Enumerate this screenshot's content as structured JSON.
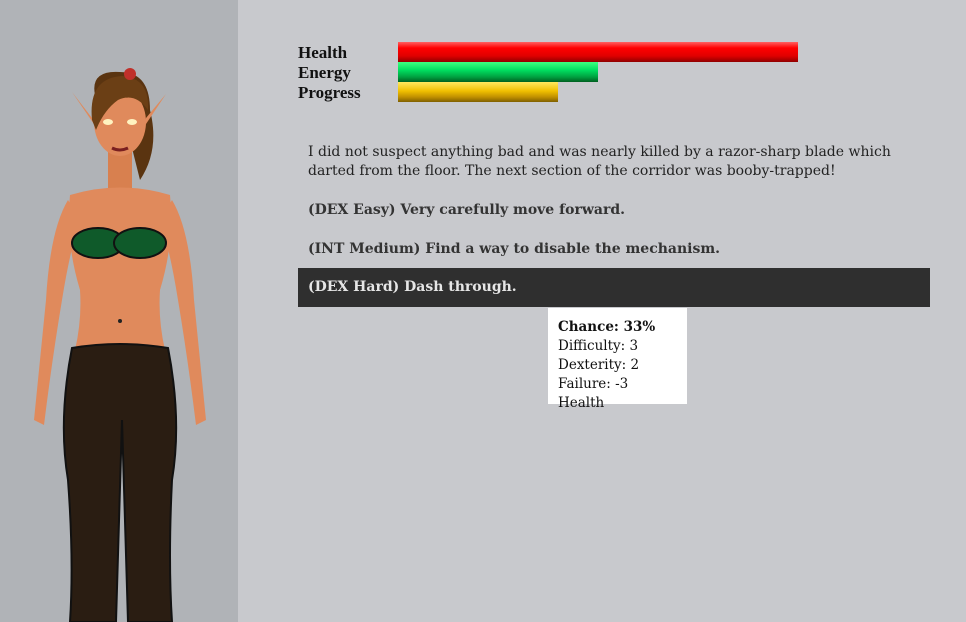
{
  "stats": [
    {
      "label": "Health",
      "fill_percent": 100,
      "color": "#ff0000"
    },
    {
      "label": "Energy",
      "fill_percent": 50,
      "color": "#00e060"
    },
    {
      "label": "Progress",
      "fill_percent": 40,
      "color": "#f0c000"
    }
  ],
  "story": {
    "text": "I did not suspect anything bad and was nearly killed by a razor-sharp blade which darted from the floor. The next section of the corridor was booby-trapped!"
  },
  "choices": [
    {
      "label": "(DEX Easy) Very carefully move forward."
    },
    {
      "label": "(INT Medium) Find a way to disable the mechanism."
    },
    {
      "label": "(DEX Hard) Dash through.",
      "selected": true
    }
  ],
  "tooltip": {
    "chance": "Chance: 33%",
    "difficulty": "Difficulty: 3",
    "dexterity": "Dexterity: 2",
    "failure": "Failure: -3 Health"
  }
}
